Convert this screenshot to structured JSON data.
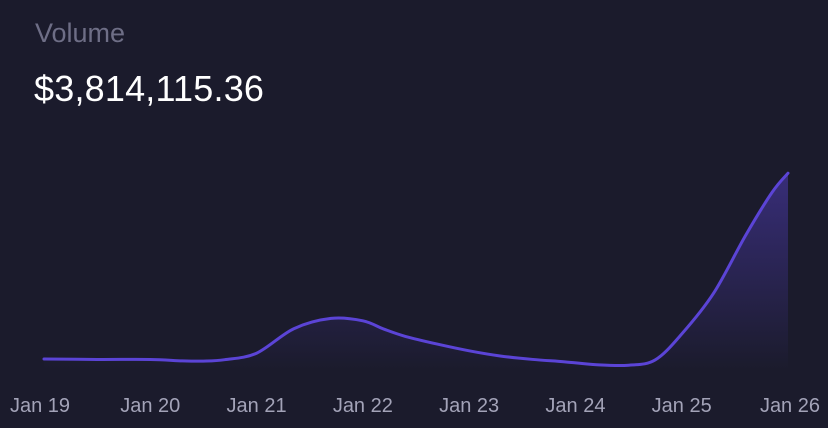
{
  "header": {
    "label": "Volume",
    "value": "$3,814,115.36"
  },
  "colors": {
    "background": "#1b1b2c",
    "line": "#5b44d6",
    "label": "#6e6e86",
    "tick": "#a3a3b8"
  },
  "chart_data": {
    "type": "area",
    "title": "Volume",
    "xlabel": "",
    "ylabel": "",
    "grid": false,
    "ylim": [
      0,
      1000000
    ],
    "categories": [
      "Jan 19",
      "Jan 20",
      "Jan 21",
      "Jan 22",
      "Jan 23",
      "Jan 24",
      "Jan 25",
      "Jan 26"
    ],
    "x": [
      0,
      0.5,
      1,
      1.3,
      1.5,
      1.7,
      2,
      2.35,
      2.7,
      3,
      3.2,
      3.4,
      3.7,
      4,
      4.3,
      4.6,
      4.9,
      5.2,
      5.5,
      5.75,
      6,
      6.3,
      6.6,
      6.85,
      7
    ],
    "values": [
      46000,
      44000,
      44000,
      38000,
      37000,
      43000,
      70000,
      172000,
      215000,
      205000,
      170000,
      140000,
      108000,
      80000,
      58000,
      44000,
      34000,
      22000,
      20000,
      42000,
      150000,
      320000,
      560000,
      740000,
      820000
    ]
  }
}
